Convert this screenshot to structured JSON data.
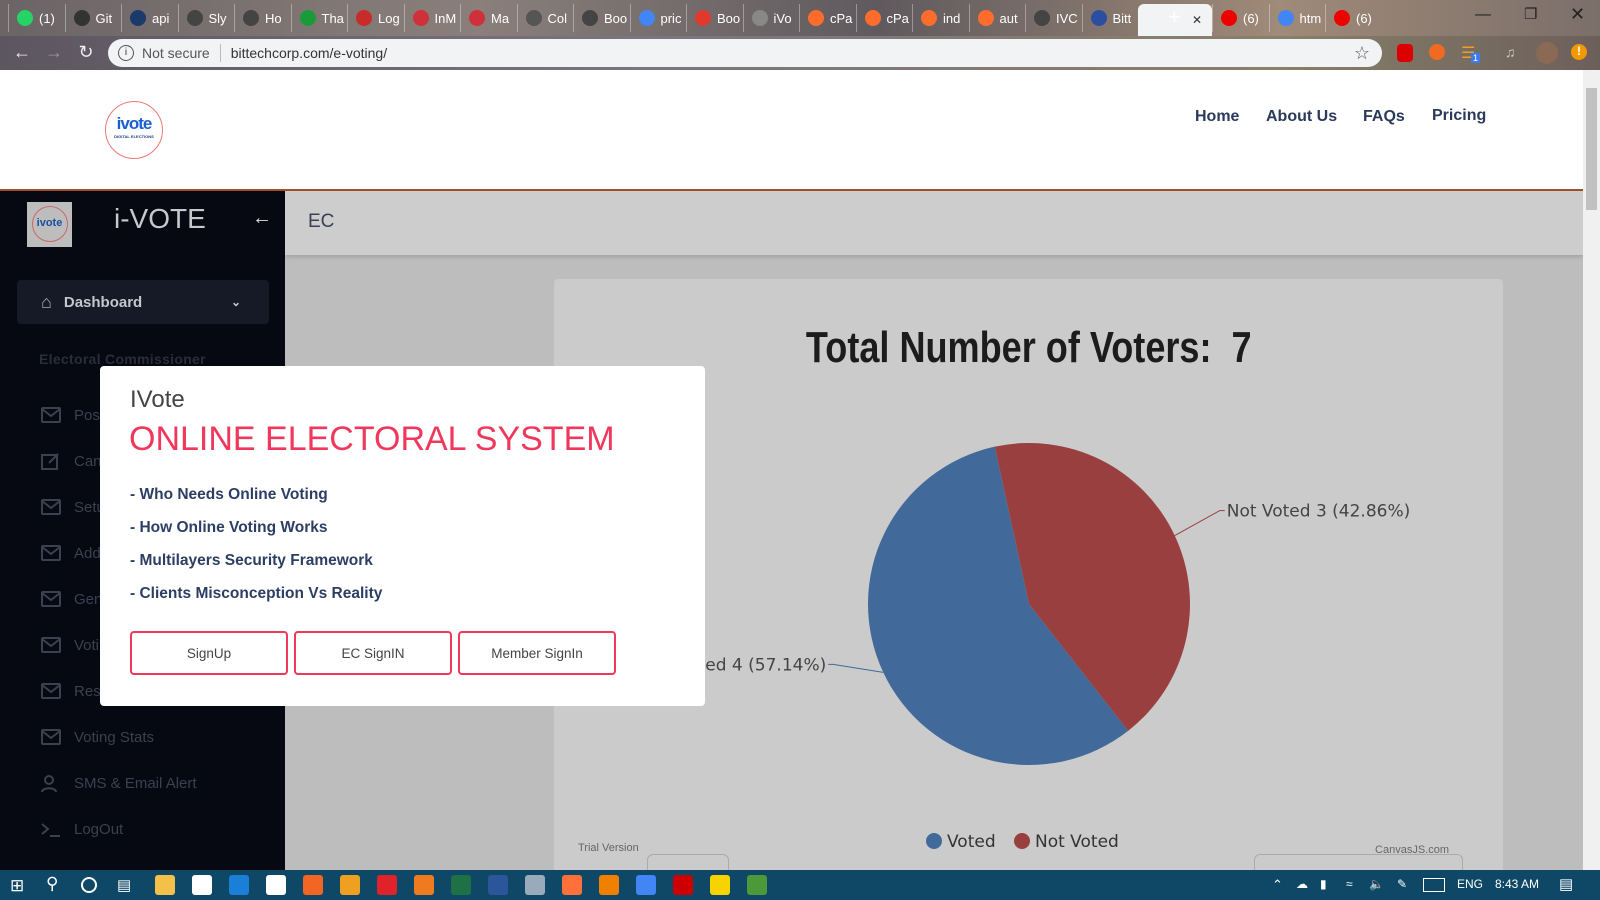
{
  "browser": {
    "tabs": [
      {
        "label": "(1)",
        "color": "#25d366"
      },
      {
        "label": "Git",
        "color": "#333"
      },
      {
        "label": "api",
        "color": "#1a3a6a"
      },
      {
        "label": "Sly",
        "color": "#444"
      },
      {
        "label": "Ho",
        "color": "#444"
      },
      {
        "label": "Tha",
        "color": "#1a9b3a"
      },
      {
        "label": "Log",
        "color": "#c92a2a"
      },
      {
        "label": "InM",
        "color": "#d0303a"
      },
      {
        "label": "Ma",
        "color": "#d0303a"
      },
      {
        "label": "Col",
        "color": "#555"
      },
      {
        "label": "Boo",
        "color": "#444"
      },
      {
        "label": "pric",
        "color": "#4285f4"
      },
      {
        "label": "Boo",
        "color": "#e03a2f"
      },
      {
        "label": "iVo",
        "color": "#888"
      },
      {
        "label": "cPa",
        "color": "#ff6c2c"
      },
      {
        "label": "cPa",
        "color": "#ff6c2c"
      },
      {
        "label": "ind",
        "color": "#ff6c2c"
      },
      {
        "label": "aut",
        "color": "#ff6c2c"
      },
      {
        "label": "IVC",
        "color": "#444"
      },
      {
        "label": "Bitt",
        "color": "#2a4ea0"
      },
      {
        "label": "",
        "color": "#fff",
        "active": true
      },
      {
        "label": "(6)",
        "color": "#e00"
      },
      {
        "label": "htm",
        "color": "#4285f4"
      },
      {
        "label": "(6)",
        "color": "#e00"
      }
    ],
    "security": "Not secure",
    "url": "bittechcorp.com/e-voting/",
    "extension_badge": "1"
  },
  "header": {
    "logo_text": "ivote",
    "logo_sub": "DIGITAL ELECTIONS",
    "nav": [
      "Home",
      "About Us",
      "FAQs",
      "Pricing"
    ]
  },
  "sidebar": {
    "brand": "i-VOTE",
    "dashboard": "Dashboard",
    "section": "Electoral Commissioner",
    "items": [
      {
        "label": "Posi",
        "icon": "mail-icon"
      },
      {
        "label": "Can",
        "icon": "edit-icon"
      },
      {
        "label": "Setu",
        "icon": "mail-icon"
      },
      {
        "label": "Add",
        "icon": "mail-icon"
      },
      {
        "label": "Gen",
        "icon": "mail-icon"
      },
      {
        "label": "Voti",
        "icon": "mail-icon"
      },
      {
        "label": "Res",
        "icon": "mail-icon"
      },
      {
        "label": "Voting Stats",
        "icon": "mail-icon"
      },
      {
        "label": "SMS & Email Alert",
        "icon": "users-icon"
      },
      {
        "label": "LogOut",
        "icon": "terminal-icon"
      }
    ]
  },
  "main": {
    "page_title": "EC",
    "trial": "Trial Version",
    "credit": "CanvasJS.com"
  },
  "modal": {
    "brand": "IVote",
    "title": "ONLINE ELECTORAL SYSTEM",
    "items": [
      "- Who Needs Online Voting",
      "- How Online Voting Works",
      "- Multilayers Security Framework",
      "- Clients Misconception Vs Reality"
    ],
    "buttons": [
      "SignUp",
      "EC SignIN",
      "Member SignIn"
    ],
    "accent": "#f0375c"
  },
  "chart_data": {
    "type": "pie",
    "title": "Total Number of Voters:  7",
    "categories": [
      "Voted",
      "Not Voted"
    ],
    "values": [
      4,
      3
    ],
    "labels": [
      "Voted 4 (57.14%)",
      "Not Voted 3 (42.86%)"
    ],
    "colors": [
      "#41699a",
      "#9a3f3f"
    ],
    "legend": "bottom"
  },
  "taskbar": {
    "lang": "ENG",
    "time": "8:43 AM"
  }
}
